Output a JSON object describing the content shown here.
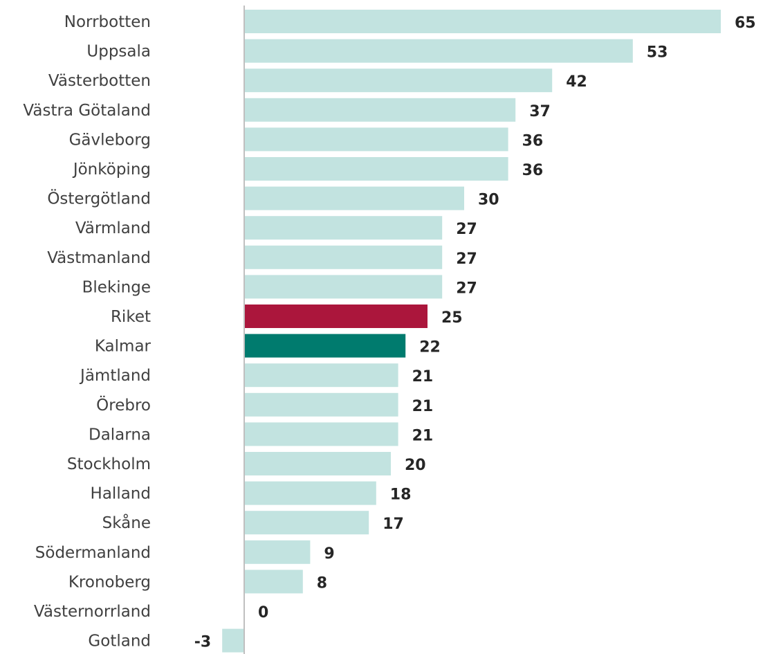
{
  "chart_data": {
    "type": "bar",
    "orientation": "horizontal",
    "categories": [
      "Norrbotten",
      "Uppsala",
      "Västerbotten",
      "Västra Götaland",
      "Gävleborg",
      "Jönköping",
      "Östergötland",
      "Värmland",
      "Västmanland",
      "Blekinge",
      "Riket",
      "Kalmar",
      "Jämtland",
      "Örebro",
      "Dalarna",
      "Stockholm",
      "Halland",
      "Skåne",
      "Södermanland",
      "Kronoberg",
      "Västernorrland",
      "Gotland"
    ],
    "values": [
      65,
      53,
      42,
      37,
      36,
      36,
      30,
      27,
      27,
      27,
      25,
      22,
      21,
      21,
      21,
      20,
      18,
      17,
      9,
      8,
      0,
      -3
    ],
    "value_labels": [
      "65",
      "53",
      "42",
      "37",
      "36",
      "36",
      "30",
      "27",
      "27",
      "27",
      "25",
      "22",
      "21",
      "21",
      "21",
      "20",
      "18",
      "17",
      "9",
      "8",
      "0",
      "-3"
    ],
    "colors": {
      "default": "#c2e3e0",
      "highlight_national": "#ab163c",
      "highlight_region": "#007b6e",
      "axis": "#bfbfbf"
    },
    "highlights": {
      "Riket": "highlight_national",
      "Kalmar": "highlight_region"
    },
    "title": "",
    "xlabel": "",
    "ylabel": "",
    "xlim": [
      -3,
      65
    ],
    "grid": false,
    "legend": "none"
  }
}
